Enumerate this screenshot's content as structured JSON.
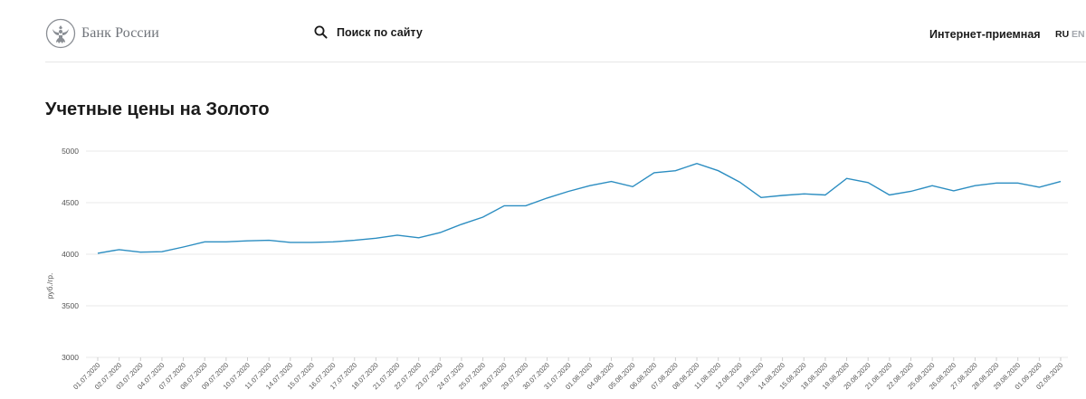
{
  "header": {
    "logo_text": "Банк России",
    "search_label": "Поиск по сайту",
    "reception_label": "Интернет-приемная",
    "lang_ru": "RU",
    "lang_en": "EN"
  },
  "page_title": "Учетные цены на Золото",
  "colors": {
    "line": "#2b8dc1",
    "grid": "#e8e8e8",
    "axis": "#cccccc",
    "lang_inactive": "#a3a7ad"
  },
  "chart_data": {
    "type": "line",
    "title": "",
    "xlabel": "",
    "ylabel": "руб./гр.",
    "ylim": [
      3000,
      5000
    ],
    "yticks": [
      3000,
      3500,
      4000,
      4500,
      5000
    ],
    "grid": true,
    "legend": "none",
    "x": [
      "01.07.2020",
      "02.07.2020",
      "03.07.2020",
      "04.07.2020",
      "07.07.2020",
      "08.07.2020",
      "09.07.2020",
      "10.07.2020",
      "11.07.2020",
      "14.07.2020",
      "15.07.2020",
      "16.07.2020",
      "17.07.2020",
      "18.07.2020",
      "21.07.2020",
      "22.07.2020",
      "23.07.2020",
      "24.07.2020",
      "25.07.2020",
      "28.07.2020",
      "29.07.2020",
      "30.07.2020",
      "31.07.2020",
      "01.08.2020",
      "04.08.2020",
      "05.08.2020",
      "06.08.2020",
      "07.08.2020",
      "08.08.2020",
      "11.08.2020",
      "12.08.2020",
      "13.08.2020",
      "14.08.2020",
      "15.08.2020",
      "18.08.2020",
      "19.08.2020",
      "20.08.2020",
      "21.08.2020",
      "22.08.2020",
      "25.08.2020",
      "26.08.2020",
      "27.08.2020",
      "28.08.2020",
      "29.08.2020",
      "01.09.2020",
      "02.09.2020"
    ],
    "series": [
      {
        "values": [
          4010,
          4045,
          4020,
          4025,
          4070,
          4120,
          4120,
          4130,
          4135,
          4115,
          4115,
          4120,
          4135,
          4155,
          4185,
          4160,
          4210,
          4290,
          4360,
          4470,
          4470,
          4545,
          4610,
          4665,
          4705,
          4655,
          4790,
          4810,
          4880,
          4810,
          4700,
          4550,
          4570,
          4585,
          4575,
          4735,
          4695,
          4575,
          4610,
          4665,
          4615,
          4665,
          4690,
          4690,
          4650,
          4705
        ]
      }
    ]
  }
}
